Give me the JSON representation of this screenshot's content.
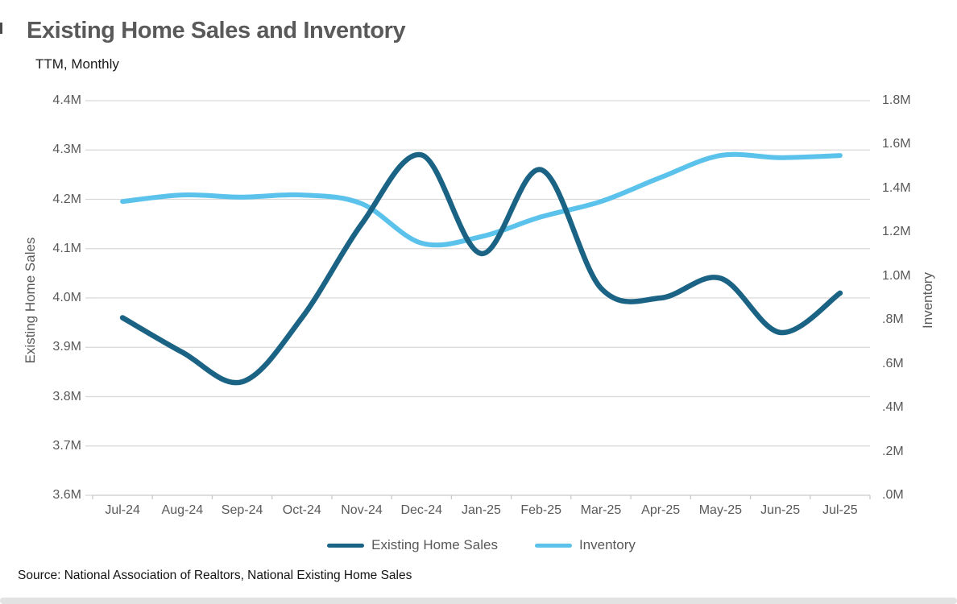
{
  "chart": {
    "title": "Existing Home Sales and Inventory",
    "subtitle": "TTM, Monthly",
    "source": "Source: National Association of Realtors, National Existing Home Sales"
  },
  "chart_data": {
    "type": "line",
    "smooth": true,
    "grid": "horizontal",
    "legend_position": "bottom",
    "categories": [
      "Jul-24",
      "Aug-24",
      "Sep-24",
      "Oct-24",
      "Nov-24",
      "Dec-24",
      "Jan-25",
      "Feb-25",
      "Mar-25",
      "Apr-25",
      "May-25",
      "Jun-25",
      "Jul-25"
    ],
    "series": [
      {
        "name": "Existing Home Sales",
        "axis": "left",
        "color": "#1B6384",
        "line_width": 6.5,
        "values": [
          3.96,
          3.89,
          3.83,
          3.96,
          4.15,
          4.29,
          4.09,
          4.26,
          4.02,
          4.0,
          4.04,
          3.93,
          4.01
        ]
      },
      {
        "name": "Inventory",
        "axis": "right",
        "color": "#5BC2EC",
        "line_width": 6,
        "values": [
          1.34,
          1.37,
          1.36,
          1.37,
          1.33,
          1.15,
          1.18,
          1.27,
          1.34,
          1.45,
          1.55,
          1.54,
          1.55
        ]
      }
    ],
    "left_axis": {
      "title": "Existing Home Sales",
      "min": 3.6,
      "max": 4.4,
      "tick_labels": [
        "4.4M",
        "4.3M",
        "4.2M",
        "4.1M",
        "4.0M",
        "3.9M",
        "3.8M",
        "3.7M",
        "3.6M"
      ]
    },
    "right_axis": {
      "title": "Inventory",
      "min": 0.0,
      "max": 1.8,
      "tick_labels": [
        "1.8M",
        "1.6M",
        "1.4M",
        "1.2M",
        "1.0M",
        ".8M",
        ".6M",
        ".4M",
        ".2M",
        ".0M"
      ]
    }
  },
  "colors": {
    "title_text": "#595959",
    "axis_text": "#595959",
    "gridline": "#D9D9D9",
    "axis_line": "#C9C9C9",
    "sales_line": "#1B6384",
    "inventory_line": "#5BC2EC",
    "bottom_bar": "#E2E2E2"
  }
}
